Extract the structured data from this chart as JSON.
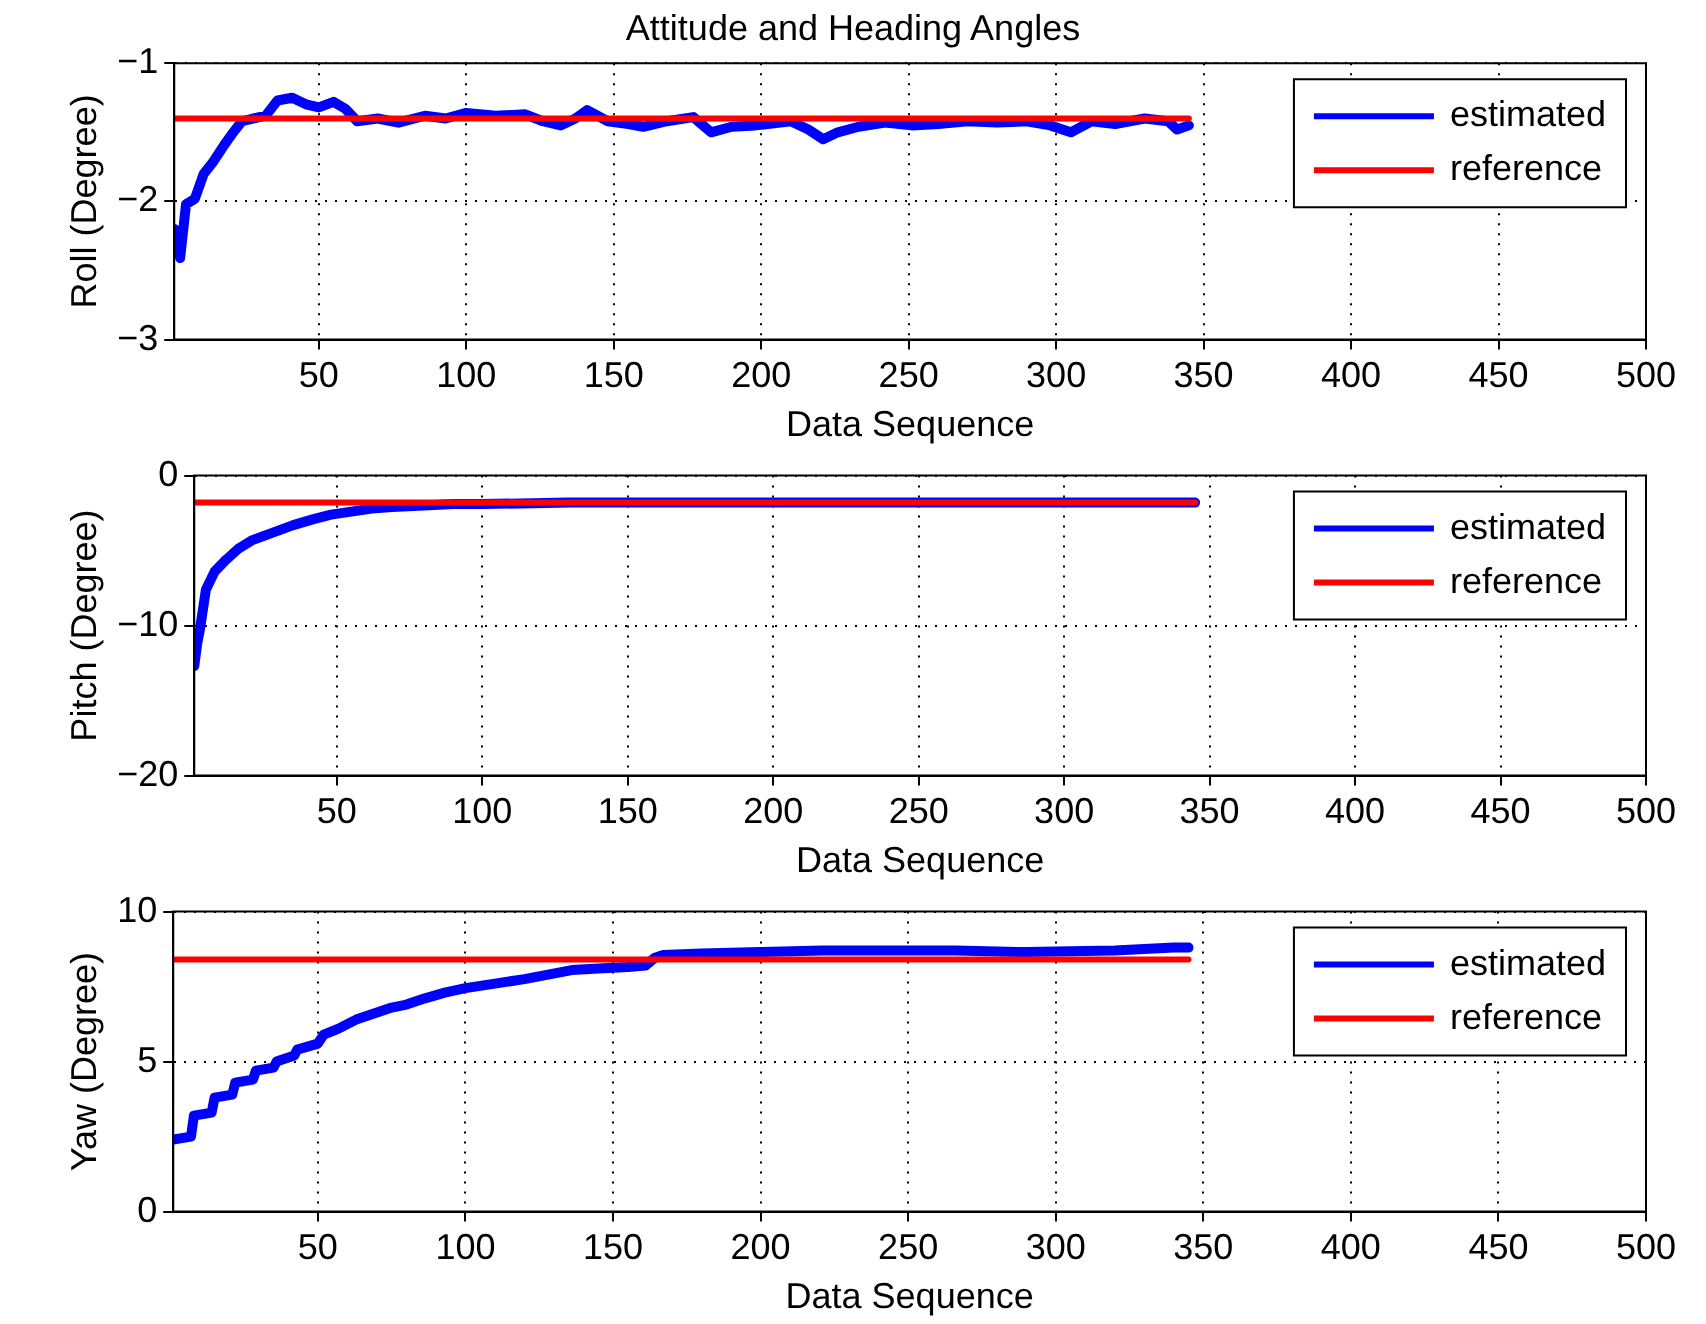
{
  "chart_data": [
    {
      "type": "line",
      "title": "Attitude and Heading Angles",
      "xlabel": "Data Sequence",
      "ylabel": "Roll (Degree)",
      "xlim": [
        1,
        500
      ],
      "xticks": [
        50,
        100,
        150,
        200,
        250,
        300,
        350,
        400,
        450,
        500
      ],
      "ylim": [
        -3,
        -1
      ],
      "yticks": [
        -3,
        -2,
        -1
      ],
      "grid": true,
      "legend": "top right",
      "line_style": "solid",
      "marker": "none",
      "series": [
        {
          "name": "estimated",
          "color": "#0000ff",
          "x": [
            1,
            3,
            5,
            8,
            11,
            14,
            18,
            21,
            24,
            28,
            32,
            36,
            41,
            46,
            50,
            55,
            59,
            63,
            70,
            77,
            86,
            93,
            100,
            110,
            120,
            126,
            132,
            137,
            141,
            148,
            155,
            160,
            168,
            177,
            183,
            190,
            198,
            210,
            216,
            221,
            226,
            233,
            242,
            251,
            260,
            270,
            280,
            290,
            298,
            305,
            312,
            320,
            330,
            338,
            341,
            345
          ],
          "values": [
            -2.2,
            -2.41,
            -2.02,
            -1.98,
            -1.8,
            -1.72,
            -1.59,
            -1.5,
            -1.42,
            -1.4,
            -1.38,
            -1.27,
            -1.25,
            -1.3,
            -1.32,
            -1.28,
            -1.33,
            -1.42,
            -1.4,
            -1.43,
            -1.38,
            -1.4,
            -1.36,
            -1.38,
            -1.37,
            -1.42,
            -1.45,
            -1.4,
            -1.34,
            -1.42,
            -1.44,
            -1.46,
            -1.42,
            -1.39,
            -1.5,
            -1.46,
            -1.45,
            -1.42,
            -1.48,
            -1.55,
            -1.5,
            -1.46,
            -1.43,
            -1.45,
            -1.44,
            -1.42,
            -1.43,
            -1.42,
            -1.45,
            -1.5,
            -1.42,
            -1.44,
            -1.4,
            -1.42,
            -1.48,
            -1.45
          ]
        },
        {
          "name": "reference",
          "color": "#ff0000",
          "x": [
            1,
            345
          ],
          "values": [
            -1.4,
            -1.4
          ]
        }
      ]
    },
    {
      "type": "line",
      "xlabel": "Data Sequence",
      "ylabel": "Pitch (Degree)",
      "xlim": [
        1,
        500
      ],
      "xticks": [
        50,
        100,
        150,
        200,
        250,
        300,
        350,
        400,
        450,
        500
      ],
      "ylim": [
        -20,
        0
      ],
      "yticks": [
        -20,
        -10,
        0
      ],
      "grid": true,
      "legend": "top right",
      "line_style": "solid",
      "marker": "none",
      "series": [
        {
          "name": "estimated",
          "color": "#0000ff",
          "x": [
            1,
            2,
            3,
            5,
            8,
            12,
            16,
            21,
            28,
            35,
            42,
            48,
            55,
            62,
            69,
            80,
            90,
            100,
            130,
            160,
            200,
            250,
            300,
            345
          ],
          "values": [
            -12.7,
            -11.2,
            -10.2,
            -7.6,
            -6.4,
            -5.6,
            -4.9,
            -4.3,
            -3.8,
            -3.3,
            -2.9,
            -2.6,
            -2.4,
            -2.2,
            -2.1,
            -2.0,
            -1.9,
            -1.9,
            -1.8,
            -1.8,
            -1.8,
            -1.8,
            -1.8,
            -1.8
          ]
        },
        {
          "name": "reference",
          "color": "#ff0000",
          "x": [
            1,
            345
          ],
          "values": [
            -1.8,
            -1.8
          ]
        }
      ]
    },
    {
      "type": "line",
      "xlabel": "Data Sequence",
      "ylabel": "Yaw (Degree)",
      "xlim": [
        1,
        500
      ],
      "xticks": [
        50,
        100,
        150,
        200,
        250,
        300,
        350,
        400,
        450,
        500
      ],
      "ylim": [
        0,
        10
      ],
      "yticks": [
        0,
        5,
        10
      ],
      "grid": true,
      "legend": "top right",
      "line_style": "solid",
      "marker": "none",
      "series": [
        {
          "name": "estimated",
          "color": "#0000ff",
          "x": [
            1,
            7,
            8,
            14,
            15,
            21,
            22,
            28,
            29,
            35,
            36,
            42,
            43,
            50,
            52,
            57,
            63,
            69,
            75,
            80,
            86,
            93,
            100,
            110,
            120,
            128,
            136,
            145,
            155,
            161,
            164,
            167,
            180,
            200,
            221,
            240,
            266,
            290,
            320,
            340,
            345
          ],
          "values": [
            2.4,
            2.5,
            3.2,
            3.3,
            3.8,
            3.9,
            4.3,
            4.4,
            4.7,
            4.8,
            5.0,
            5.2,
            5.4,
            5.6,
            5.9,
            6.1,
            6.4,
            6.6,
            6.8,
            6.9,
            7.1,
            7.3,
            7.45,
            7.6,
            7.75,
            7.9,
            8.05,
            8.1,
            8.15,
            8.2,
            8.45,
            8.55,
            8.6,
            8.65,
            8.7,
            8.7,
            8.7,
            8.65,
            8.7,
            8.8,
            8.8
          ]
        },
        {
          "name": "reference",
          "color": "#ff0000",
          "x": [
            1,
            345
          ],
          "values": [
            8.4,
            8.4
          ]
        }
      ]
    }
  ]
}
